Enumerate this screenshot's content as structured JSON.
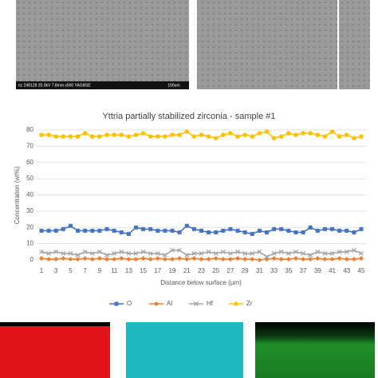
{
  "images": {
    "sem_left_caption": "ez 248128 20.0kV 7.8mm x500 YAGBSE",
    "sem_left_scale": "100um"
  },
  "chart_data": {
    "type": "line",
    "title": "Yttria partially stabilized zirconia - sample #1",
    "x_label": "Distance below surface (µm)",
    "y_label": "Concentration (wt%)",
    "x": [
      1,
      2,
      3,
      4,
      5,
      6,
      7,
      8,
      9,
      10,
      11,
      12,
      13,
      14,
      15,
      16,
      17,
      18,
      19,
      20,
      21,
      22,
      23,
      24,
      25,
      26,
      27,
      28,
      29,
      30,
      31,
      32,
      33,
      34,
      35,
      36,
      37,
      38,
      39,
      40,
      41,
      42,
      43,
      44,
      45
    ],
    "xlim": [
      1,
      45
    ],
    "xticks": [
      1,
      3,
      5,
      7,
      9,
      11,
      13,
      15,
      17,
      19,
      21,
      23,
      25,
      27,
      29,
      31,
      33,
      35,
      37,
      39,
      41,
      43,
      45
    ],
    "ylim": [
      0,
      80
    ],
    "yticks": [
      0,
      10,
      20,
      30,
      40,
      50,
      60,
      70,
      80
    ],
    "grid": true,
    "legend": "bottom",
    "series": [
      {
        "name": "O",
        "color": "#4472c4",
        "marker": "square",
        "values": [
          18,
          18,
          18,
          19,
          21,
          18,
          18,
          18,
          18,
          19,
          18,
          17,
          16,
          20,
          19,
          19,
          18,
          18,
          18,
          17,
          21,
          19,
          18,
          17,
          17,
          18,
          19,
          18,
          17,
          16,
          18,
          17,
          19,
          19,
          18,
          17,
          17,
          20,
          18,
          19,
          19,
          18,
          18,
          17,
          19
        ]
      },
      {
        "name": "Al",
        "color": "#ed7d31",
        "marker": "diamond",
        "values": [
          1,
          0.5,
          0.5,
          1,
          0.5,
          0.5,
          1,
          0.5,
          1,
          0.5,
          0.5,
          1,
          0.5,
          0.5,
          1,
          0.5,
          1,
          0.5,
          0.5,
          1,
          0.5,
          1,
          0.5,
          0.5,
          1,
          0.5,
          0.5,
          1,
          0.5,
          0.5,
          0,
          0.5,
          1,
          0.5,
          0.5,
          1,
          0.5,
          0.5,
          1,
          0.5,
          0.5,
          1,
          0.5,
          0.5,
          1
        ]
      },
      {
        "name": "Hf",
        "color": "#a5a5a5",
        "marker": "cross",
        "values": [
          5,
          4,
          5,
          4,
          4,
          3,
          5,
          4,
          5,
          3,
          4,
          5,
          4,
          4,
          5,
          4,
          4,
          3,
          6,
          6,
          3,
          4,
          4,
          5,
          4,
          5,
          4,
          5,
          4,
          4,
          5,
          2,
          4,
          5,
          4,
          5,
          4,
          3,
          5,
          4,
          4,
          5,
          5,
          6,
          4
        ]
      },
      {
        "name": "Zr",
        "color": "#ffc000",
        "marker": "circle",
        "values": [
          77,
          77,
          76,
          76,
          76,
          76,
          78,
          76,
          76,
          77,
          77,
          77,
          76,
          77,
          78,
          76,
          76,
          76,
          77,
          77,
          79,
          76,
          77,
          76,
          75,
          77,
          78,
          76,
          77,
          76,
          78,
          79,
          75,
          76,
          78,
          77,
          78,
          78,
          77,
          76,
          79,
          76,
          77,
          75,
          76
        ]
      }
    ]
  }
}
